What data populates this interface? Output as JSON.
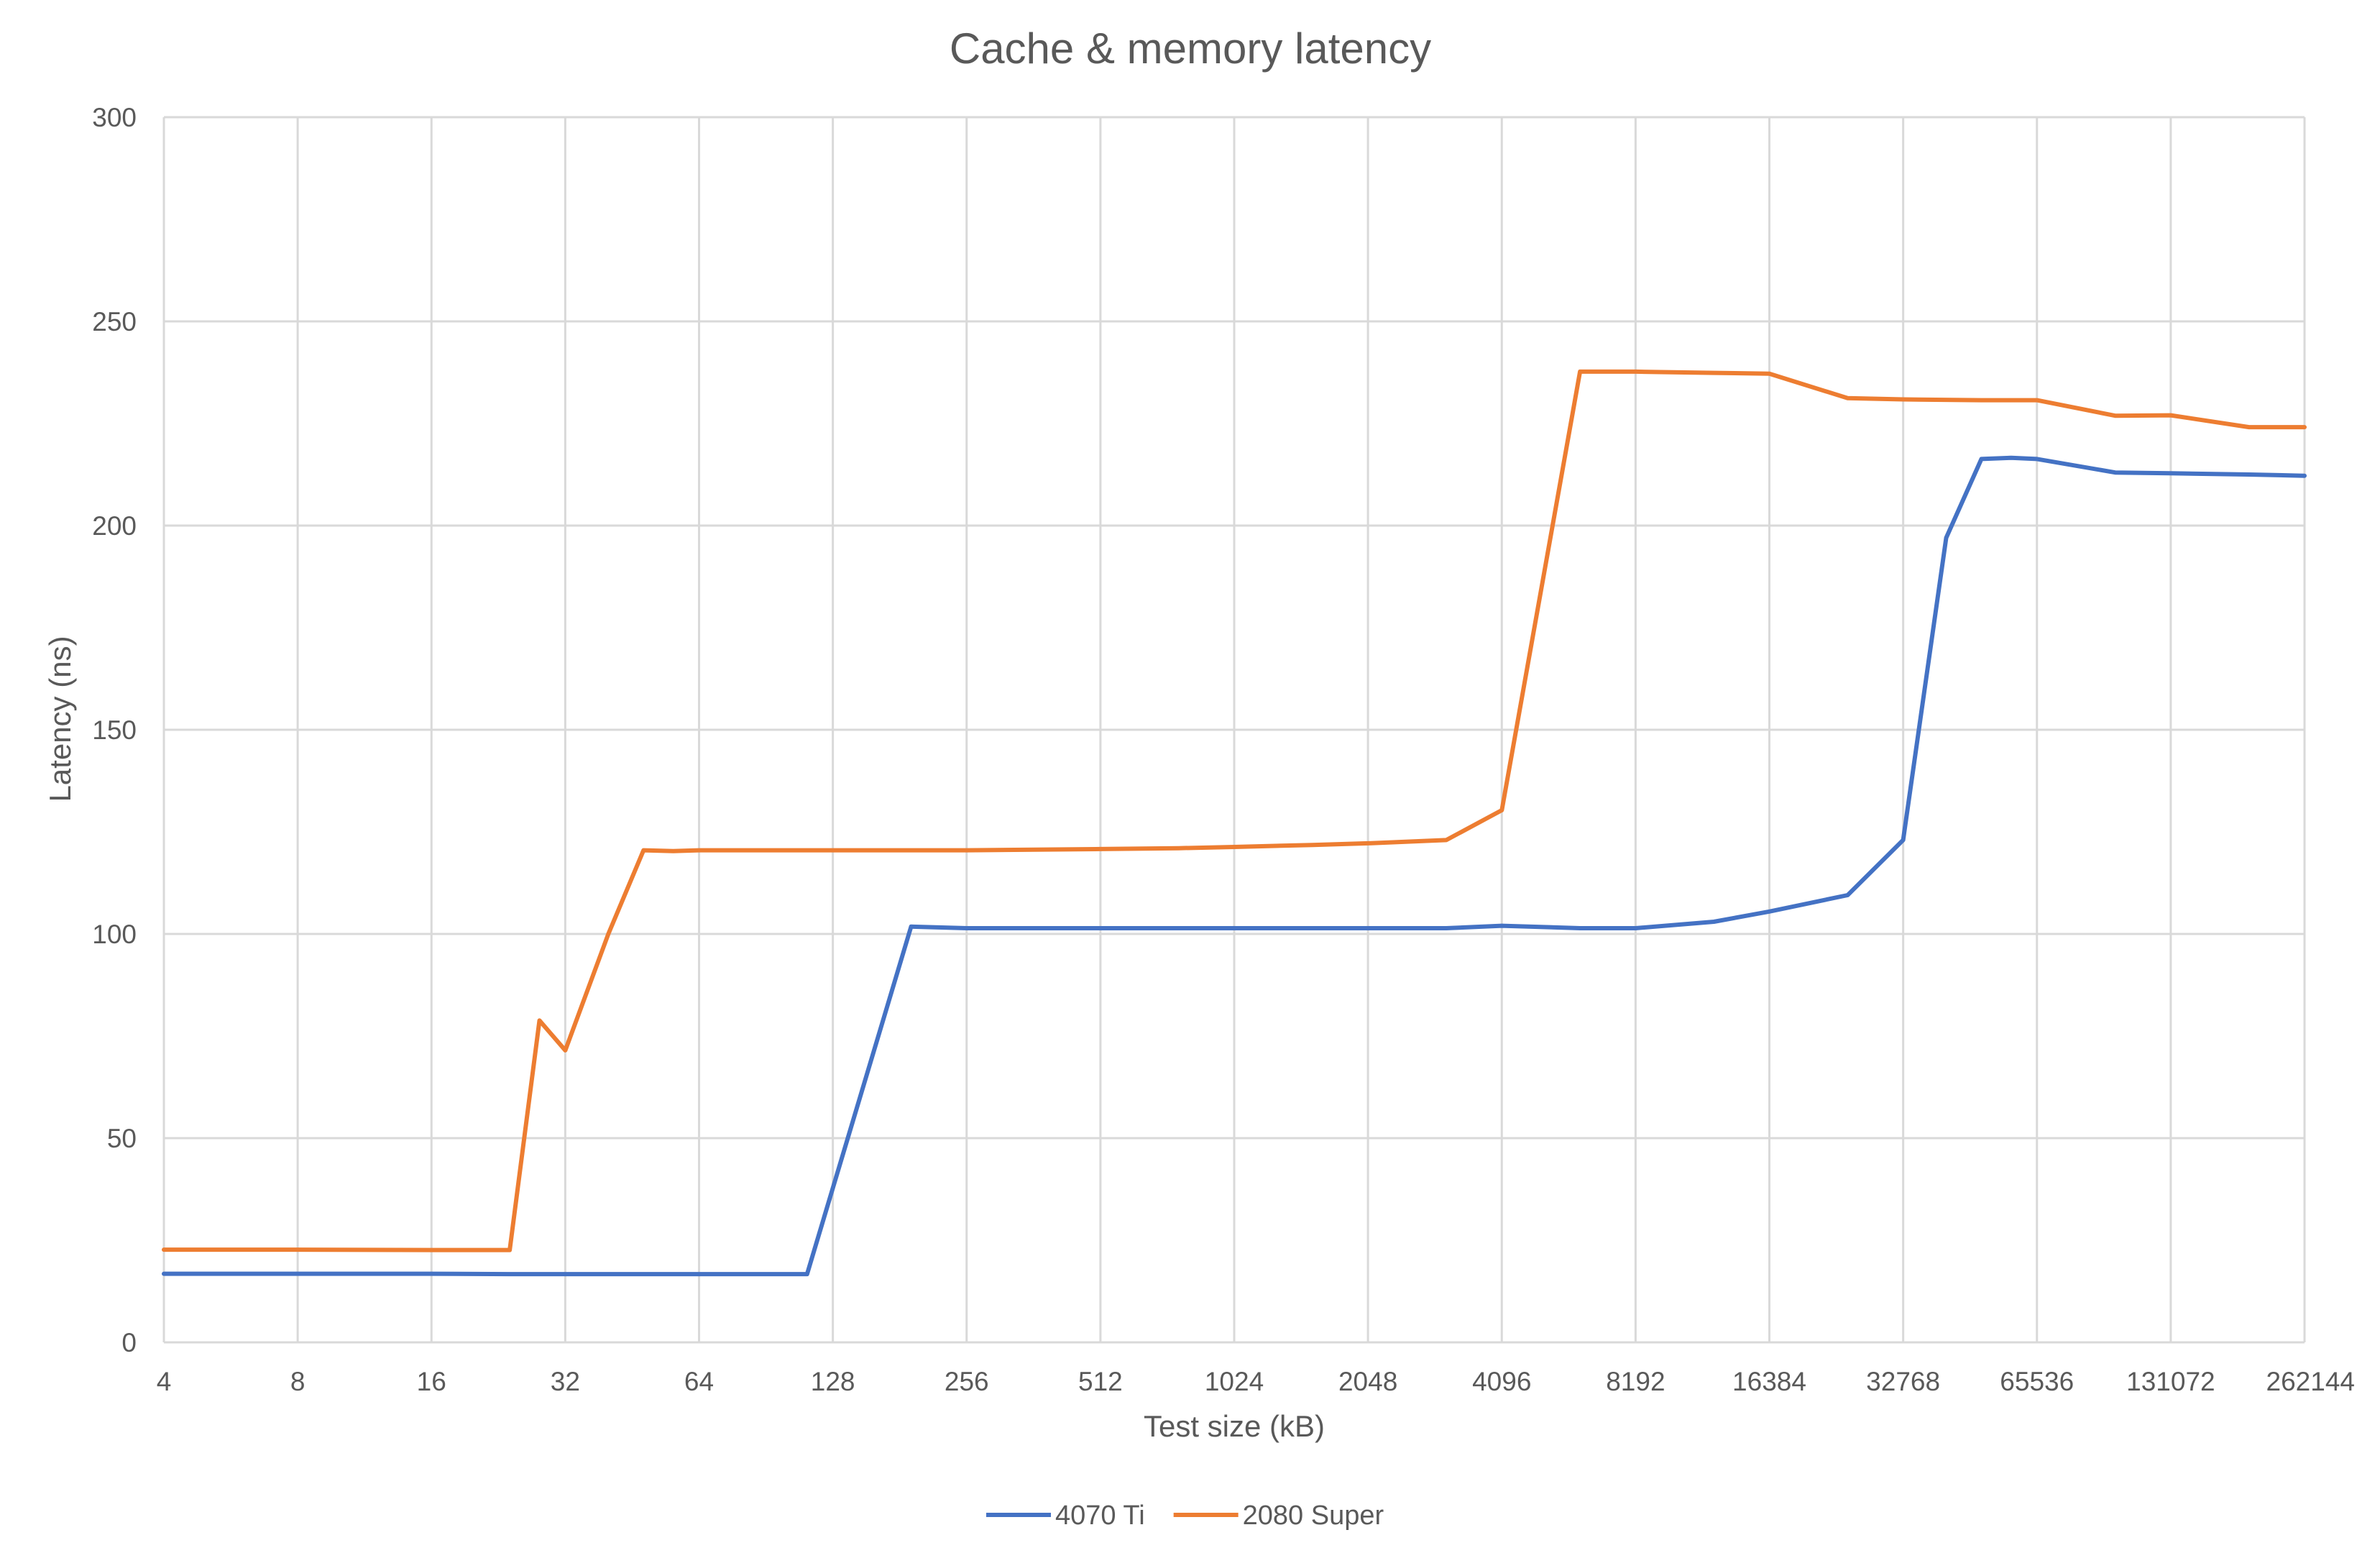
{
  "chart_data": {
    "type": "line",
    "title": "Cache & memory latency",
    "xlabel": "Test size (kB)",
    "ylabel": "Latency (ns)",
    "x_scale": "log2",
    "xlim": [
      4,
      262144
    ],
    "ylim": [
      0,
      300
    ],
    "y_ticks": [
      0,
      50,
      100,
      150,
      200,
      250,
      300
    ],
    "x_ticks": [
      4,
      8,
      16,
      32,
      64,
      128,
      256,
      512,
      1024,
      2048,
      4096,
      8192,
      16384,
      32768,
      65536,
      131072,
      262144
    ],
    "grid": true,
    "legend_position": "bottom",
    "colors": {
      "4070 Ti": "#4472c4",
      "2080 Super": "#ed7d31",
      "text": "#595959",
      "grid": "#d9d9d9"
    },
    "series": [
      {
        "name": "4070 Ti",
        "color": "#4472c4",
        "points": [
          [
            4,
            16.8
          ],
          [
            8,
            16.8
          ],
          [
            16,
            16.8
          ],
          [
            24,
            16.7
          ],
          [
            32,
            16.7
          ],
          [
            48,
            16.7
          ],
          [
            64,
            16.7
          ],
          [
            96,
            16.7
          ],
          [
            112,
            16.7
          ],
          [
            192,
            101.8
          ],
          [
            256,
            101.4
          ],
          [
            384,
            101.4
          ],
          [
            512,
            101.4
          ],
          [
            768,
            101.4
          ],
          [
            1024,
            101.4
          ],
          [
            1536,
            101.4
          ],
          [
            2048,
            101.4
          ],
          [
            3072,
            101.4
          ],
          [
            4096,
            102.0
          ],
          [
            6144,
            101.4
          ],
          [
            8192,
            101.4
          ],
          [
            12288,
            103.0
          ],
          [
            16384,
            105.5
          ],
          [
            24576,
            109.5
          ],
          [
            32768,
            123.0
          ],
          [
            40960,
            197.0
          ],
          [
            49152,
            216.3
          ],
          [
            57344,
            216.6
          ],
          [
            65536,
            216.3
          ],
          [
            98304,
            213.0
          ],
          [
            131072,
            212.8
          ],
          [
            196608,
            212.5
          ],
          [
            262144,
            212.2
          ]
        ]
      },
      {
        "name": "2080 Super",
        "color": "#ed7d31",
        "points": [
          [
            4,
            22.7
          ],
          [
            8,
            22.7
          ],
          [
            16,
            22.6
          ],
          [
            24,
            22.6
          ],
          [
            28,
            78.8
          ],
          [
            32,
            71.5
          ],
          [
            40,
            100.0
          ],
          [
            48,
            120.5
          ],
          [
            56,
            120.3
          ],
          [
            64,
            120.5
          ],
          [
            96,
            120.5
          ],
          [
            128,
            120.5
          ],
          [
            256,
            120.5
          ],
          [
            512,
            120.8
          ],
          [
            768,
            121.0
          ],
          [
            1024,
            121.3
          ],
          [
            1536,
            121.8
          ],
          [
            2048,
            122.2
          ],
          [
            3072,
            123.0
          ],
          [
            4096,
            130.3
          ],
          [
            6144,
            237.7
          ],
          [
            8192,
            237.7
          ],
          [
            12288,
            237.4
          ],
          [
            16384,
            237.2
          ],
          [
            24576,
            231.2
          ],
          [
            32768,
            230.9
          ],
          [
            49152,
            230.7
          ],
          [
            65536,
            230.7
          ],
          [
            98304,
            226.9
          ],
          [
            131072,
            227.0
          ],
          [
            196608,
            224.1
          ],
          [
            262144,
            224.1
          ]
        ]
      }
    ]
  }
}
